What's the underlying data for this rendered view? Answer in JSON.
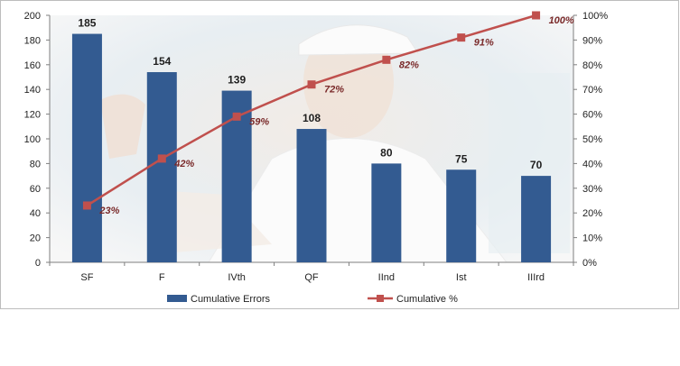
{
  "chart_data": {
    "type": "bar",
    "categories": [
      "SF",
      "F",
      "IVth",
      "QF",
      "IInd",
      "Ist",
      "IIIrd"
    ],
    "series": [
      {
        "name": "Cumulative Errors",
        "type": "bar",
        "axis": "left",
        "values": [
          185,
          154,
          139,
          108,
          80,
          75,
          70
        ],
        "data_labels": [
          "185",
          "154",
          "139",
          "108",
          "80",
          "75",
          "70"
        ]
      },
      {
        "name": "Cumulative %",
        "type": "line",
        "axis": "right",
        "values": [
          23,
          42,
          59,
          72,
          82,
          91,
          100
        ],
        "data_labels": [
          "23%",
          "42%",
          "59%",
          "72%",
          "82%",
          "91%",
          "100%"
        ]
      }
    ],
    "y_left": {
      "min": 0,
      "max": 200,
      "ticks": [
        "0",
        "20",
        "40",
        "60",
        "80",
        "100",
        "120",
        "140",
        "160",
        "180",
        "200"
      ]
    },
    "y_right": {
      "min": 0,
      "max": 100,
      "ticks": [
        "0%",
        "10%",
        "20%",
        "30%",
        "40%",
        "50%",
        "60%",
        "70%",
        "80%",
        "90%",
        "100%"
      ]
    },
    "grid": false,
    "legend_position": "bottom",
    "background": "photograph of a tennis player (faded)",
    "colors": {
      "bars": "#335b91",
      "line": "#c0504d"
    }
  }
}
